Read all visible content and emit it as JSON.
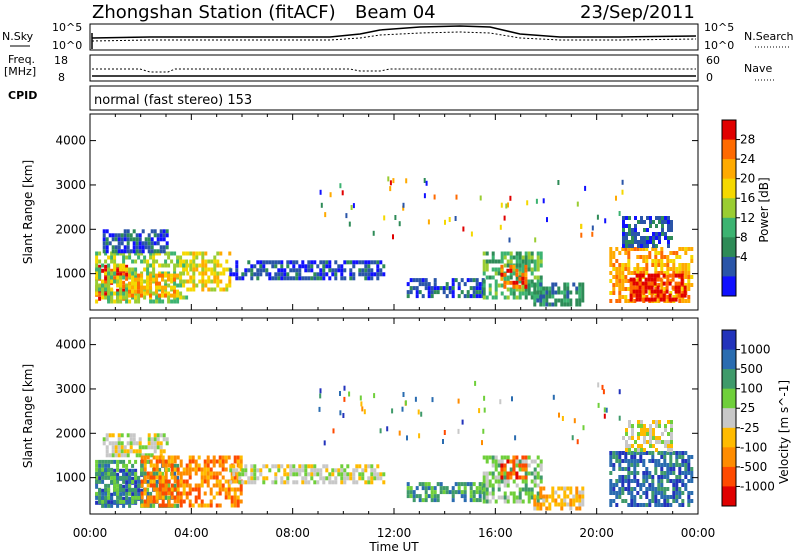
{
  "header": {
    "title": "Zhongshan Station (fitACF)",
    "beam": "Beam 04",
    "date": "23/Sep/2011"
  },
  "top_strip": {
    "left_label": "N.Sky",
    "right_label": "N.Search",
    "left_ticks": [
      "10^5",
      "10^0"
    ],
    "right_ticks": [
      "10^5",
      "10^0"
    ]
  },
  "freq_strip": {
    "left_label_1": "Freq.",
    "left_label_2": "[MHz]",
    "left_ticks": [
      "18",
      "8"
    ],
    "right_ticks": [
      "60",
      "0"
    ],
    "right_label": "Nave",
    "cpid_label": "CPID"
  },
  "cpid_text": "normal (fast stereo) 153",
  "axes": {
    "ylabel": "Slant Range [km]",
    "xlabel": "Time UT",
    "yticks": [
      "4000",
      "3000",
      "2000",
      "1000"
    ],
    "xticks": [
      "00:00",
      "04:00",
      "08:00",
      "12:00",
      "16:00",
      "20:00",
      "00:00"
    ]
  },
  "power_scale": {
    "label": "Power [dB]",
    "ticks": [
      "28",
      "24",
      "20",
      "16",
      "12",
      "8",
      "4"
    ],
    "colors": [
      "#e00000",
      "#ff6a00",
      "#ffaa00",
      "#f5d800",
      "#9acd32",
      "#3cb371",
      "#2e8b57",
      "#2a55a8",
      "#1010ff"
    ]
  },
  "velocity_scale": {
    "label": "Velocity [m s^-1]",
    "ticks": [
      "1000",
      "500",
      "100",
      "25",
      "-25",
      "-100",
      "-500",
      "-1000"
    ],
    "colors": [
      "#2233bb",
      "#2a6cb0",
      "#3f9a6a",
      "#6fcf3a",
      "#c8c8c8",
      "#ffbb00",
      "#ff8c00",
      "#ff4a00",
      "#e00000"
    ]
  },
  "chart_data": {
    "type": "heatmap",
    "x_range_hours": [
      0,
      24
    ],
    "y_range_km": [
      180,
      4600
    ],
    "panels": [
      {
        "name": "power",
        "regions": [
          {
            "t0": 0.2,
            "t1": 1.4,
            "r0": 450,
            "r1": 1200,
            "level": 0
          },
          {
            "t0": 0.2,
            "t1": 3.8,
            "r0": 400,
            "r1": 1500,
            "level": 4
          },
          {
            "t0": 1.5,
            "t1": 3.5,
            "r0": 500,
            "r1": 1000,
            "level": 2
          },
          {
            "t0": 0.5,
            "t1": 3.0,
            "r0": 1500,
            "r1": 2000,
            "level": 7
          },
          {
            "t0": 3.8,
            "t1": 5.5,
            "r0": 600,
            "r1": 1500,
            "level": 3
          },
          {
            "t0": 5.5,
            "t1": 11.6,
            "r0": 900,
            "r1": 1300,
            "level": 7
          },
          {
            "t0": 12.5,
            "t1": 15.5,
            "r0": 500,
            "r1": 900,
            "level": 7
          },
          {
            "t0": 15.5,
            "t1": 17.8,
            "r0": 500,
            "r1": 1500,
            "level": 5
          },
          {
            "t0": 16.2,
            "t1": 17.2,
            "r0": 700,
            "r1": 1200,
            "level": 1
          },
          {
            "t0": 17.5,
            "t1": 19.5,
            "r0": 300,
            "r1": 800,
            "level": 6
          },
          {
            "t0": 20.5,
            "t1": 23.8,
            "r0": 400,
            "r1": 1600,
            "level": 2
          },
          {
            "t0": 21.3,
            "t1": 23.5,
            "r0": 450,
            "r1": 1000,
            "level": 0
          },
          {
            "t0": 21.0,
            "t1": 23.0,
            "r0": 1600,
            "r1": 2300,
            "level": 7
          }
        ]
      },
      {
        "name": "velocity",
        "regions": [
          {
            "t0": 0.2,
            "t1": 2.0,
            "r0": 450,
            "r1": 1200,
            "level": 0
          },
          {
            "t0": 0.2,
            "t1": 3.5,
            "r0": 400,
            "r1": 1400,
            "level": 2
          },
          {
            "t0": 0.5,
            "t1": 3.0,
            "r0": 1500,
            "r1": 2000,
            "level": 4
          },
          {
            "t0": 2.0,
            "t1": 6.0,
            "r0": 400,
            "r1": 1500,
            "level": 6
          },
          {
            "t0": 5.5,
            "t1": 11.6,
            "r0": 900,
            "r1": 1300,
            "level": 4
          },
          {
            "t0": 12.5,
            "t1": 15.5,
            "r0": 500,
            "r1": 900,
            "level": 2
          },
          {
            "t0": 15.5,
            "t1": 17.8,
            "r0": 500,
            "r1": 1500,
            "level": 3
          },
          {
            "t0": 16.2,
            "t1": 17.2,
            "r0": 1000,
            "r1": 1500,
            "level": 7
          },
          {
            "t0": 17.5,
            "t1": 19.5,
            "r0": 300,
            "r1": 800,
            "level": 5
          },
          {
            "t0": 20.5,
            "t1": 23.8,
            "r0": 400,
            "r1": 1600,
            "level": 1
          },
          {
            "t0": 21.0,
            "t1": 23.0,
            "r0": 1600,
            "r1": 2300,
            "level": 4
          }
        ]
      }
    ]
  }
}
